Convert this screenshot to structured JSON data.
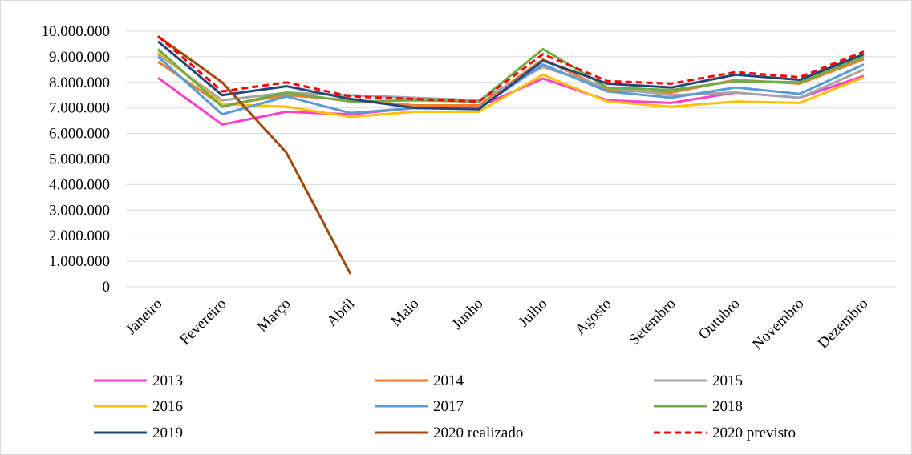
{
  "chart_data": {
    "type": "line",
    "categories": [
      "Janeiro",
      "Fevereiro",
      "Março",
      "Abril",
      "Maio",
      "Junho",
      "Julho",
      "Agosto",
      "Setembro",
      "Outubro",
      "Novembro",
      "Dezembro"
    ],
    "ylim": [
      0,
      10000000
    ],
    "yticks": [
      0,
      {
        "value": 1000000,
        "label": "1.000.000"
      },
      {
        "value": 2000000,
        "label": "2.000.000"
      },
      {
        "value": 3000000,
        "label": "3.000.000"
      },
      {
        "value": 4000000,
        "label": "4.000.000"
      },
      {
        "value": 5000000,
        "label": "5.000.000"
      },
      {
        "value": 6000000,
        "label": "6.000.000"
      },
      {
        "value": 7000000,
        "label": "7.000.000"
      },
      {
        "value": 8000000,
        "label": "8.000.000"
      },
      {
        "value": 9000000,
        "label": "9.000.000"
      },
      {
        "value": 10000000,
        "label": "10.000.000"
      }
    ],
    "grid": true,
    "legend": "bottom",
    "series": [
      {
        "name": "2013",
        "color": "#ff3fc8",
        "values": [
          8180000,
          6350000,
          6850000,
          6750000,
          7000000,
          7050000,
          8150000,
          7300000,
          7200000,
          7600000,
          7400000,
          8250000
        ]
      },
      {
        "name": "2014",
        "color": "#ed7d31",
        "values": [
          8800000,
          7100000,
          7500000,
          7300000,
          7100000,
          7100000,
          8900000,
          7700000,
          7600000,
          8100000,
          7950000,
          8900000
        ]
      },
      {
        "name": "2015",
        "color": "#a5a5a5",
        "values": [
          9100000,
          7300000,
          7600000,
          7500000,
          7400000,
          7300000,
          8600000,
          7800000,
          7500000,
          7600000,
          7400000,
          8500000
        ]
      },
      {
        "name": "2016",
        "color": "#ffc000",
        "values": [
          9200000,
          7150000,
          7050000,
          6650000,
          6850000,
          6850000,
          8300000,
          7250000,
          7050000,
          7250000,
          7200000,
          8200000
        ]
      },
      {
        "name": "2017",
        "color": "#5b9bd5",
        "values": [
          9000000,
          6750000,
          7450000,
          6800000,
          7000000,
          7000000,
          8700000,
          7650000,
          7400000,
          7800000,
          7550000,
          8700000
        ]
      },
      {
        "name": "2018",
        "color": "#70ad47",
        "values": [
          9300000,
          7050000,
          7600000,
          7250000,
          7300000,
          7250000,
          9300000,
          7800000,
          7700000,
          8050000,
          8000000,
          9000000
        ]
      },
      {
        "name": "2019",
        "color": "#264478",
        "values": [
          9600000,
          7500000,
          7850000,
          7350000,
          7000000,
          6950000,
          8850000,
          7950000,
          7800000,
          8300000,
          8100000,
          9100000
        ]
      },
      {
        "name": "2020 realizado",
        "color": "#9e480e",
        "values": [
          9800000,
          8000000,
          5250000,
          500000,
          null,
          null,
          null,
          null,
          null,
          null,
          null,
          null
        ]
      },
      {
        "name": "2020 previsto",
        "color": "#ff0000",
        "dash": true,
        "values": [
          9800000,
          7650000,
          8000000,
          7450000,
          7350000,
          7250000,
          9100000,
          8050000,
          7950000,
          8400000,
          8200000,
          9200000
        ]
      }
    ]
  }
}
